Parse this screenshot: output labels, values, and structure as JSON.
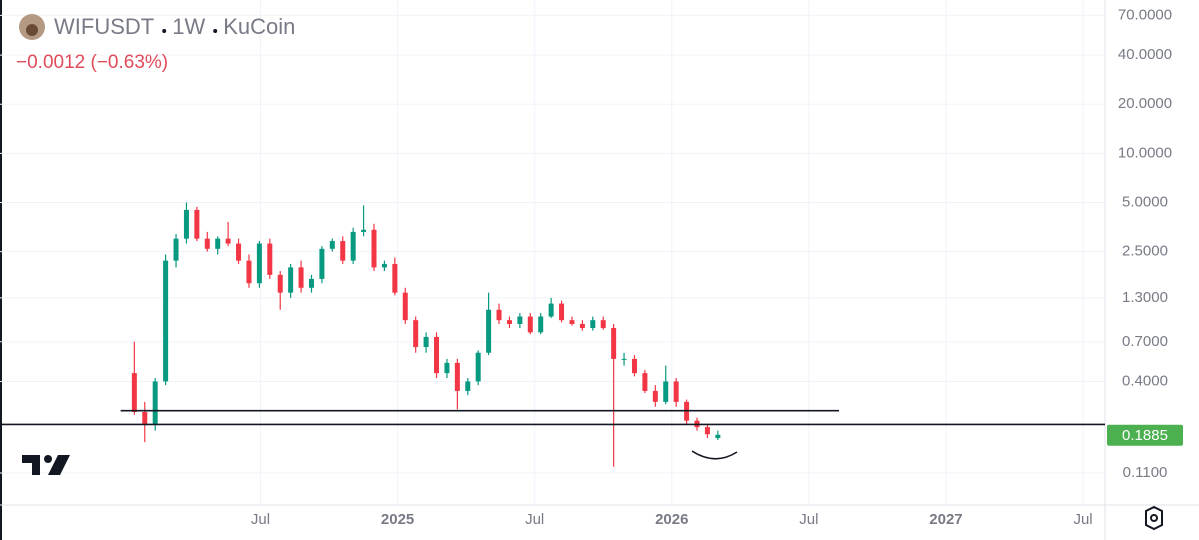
{
  "chart_data": {
    "type": "candlestick",
    "symbol": "WIFUSDT",
    "interval": "1W",
    "exchange": "KuCoin",
    "change": "−0.0012 (−0.63%)",
    "last_price": 0.1885,
    "last_price_label": "0.1885",
    "log_scale": true,
    "grid": true,
    "up_color": "#089981",
    "down_color": "#f23645",
    "xlim": [
      2023.55,
      2027.58
    ],
    "xticks": [
      {
        "value": 2024.5,
        "label": "Jul"
      },
      2025,
      {
        "value": 2025.5,
        "label": "Jul"
      },
      2026,
      {
        "value": 2026.5,
        "label": "Jul"
      },
      2027,
      {
        "value": 2027.5,
        "label": "Jul"
      }
    ],
    "ylim": [
      0.07,
      87
    ],
    "yticks": [
      {
        "value": 70,
        "label": "70.0000"
      },
      {
        "value": 40,
        "label": "40.0000"
      },
      {
        "value": 20,
        "label": "20.0000"
      },
      {
        "value": 10,
        "label": "10.0000"
      },
      {
        "value": 5,
        "label": "5.0000"
      },
      {
        "value": 2.5,
        "label": "2.5000"
      },
      {
        "value": 1.3,
        "label": "1.3000"
      },
      {
        "value": 0.7,
        "label": "0.7000"
      },
      {
        "value": 0.4,
        "label": "0.4000"
      },
      {
        "value": 0.11,
        "label": "0.1100"
      }
    ],
    "lines": [
      {
        "value": 0.265,
        "x": [
          2023.99,
          2026.61
        ]
      },
      {
        "value": 0.218,
        "x": [
          2023.55,
          2027.58
        ]
      }
    ],
    "x": [
      2024.04,
      2024.078,
      2024.116,
      2024.154,
      2024.192,
      2024.23,
      2024.268,
      2024.306,
      2024.344,
      2024.382,
      2024.42,
      2024.458,
      2024.496,
      2024.534,
      2024.572,
      2024.61,
      2024.648,
      2024.686,
      2024.724,
      2024.762,
      2024.8,
      2024.838,
      2024.876,
      2024.914,
      2024.952,
      2024.99,
      2025.028,
      2025.066,
      2025.104,
      2025.142,
      2025.18,
      2025.218,
      2025.256,
      2025.294,
      2025.332,
      2025.37,
      2025.408,
      2025.446,
      2025.484,
      2025.522,
      2025.56,
      2025.598,
      2025.636,
      2025.674,
      2025.712,
      2025.75,
      2025.788,
      2025.826,
      2025.864,
      2025.902,
      2025.94,
      2025.978,
      2026.016,
      2026.054,
      2026.092,
      2026.13,
      2026.168
    ],
    "open": [
      0.45,
      0.26,
      0.22,
      0.4,
      2.2,
      3.0,
      4.5,
      3.0,
      2.6,
      3.0,
      2.8,
      2.2,
      1.6,
      2.8,
      1.8,
      1.4,
      2.0,
      1.5,
      1.7,
      2.6,
      2.9,
      2.2,
      3.3,
      3.4,
      2.0,
      2.1,
      1.4,
      0.95,
      0.65,
      0.75,
      0.45,
      0.52,
      0.35,
      0.4,
      0.6,
      1.1,
      0.95,
      0.9,
      1.0,
      0.8,
      1.0,
      1.2,
      0.95,
      0.9,
      0.85,
      0.95,
      0.85,
      0.55,
      0.55,
      0.45,
      0.35,
      0.3,
      0.4,
      0.3,
      0.23,
      0.21,
      0.18
    ],
    "high": [
      0.7,
      0.3,
      0.42,
      2.4,
      3.2,
      5.0,
      4.7,
      3.3,
      3.1,
      3.8,
      3.0,
      2.4,
      2.9,
      3.0,
      1.9,
      2.1,
      2.2,
      1.8,
      2.7,
      3.0,
      3.1,
      3.5,
      4.8,
      3.7,
      2.2,
      2.3,
      1.5,
      1.0,
      0.8,
      0.8,
      0.55,
      0.55,
      0.42,
      0.62,
      1.4,
      1.2,
      1.0,
      1.05,
      1.05,
      1.05,
      1.3,
      1.25,
      1.0,
      0.95,
      1.0,
      1.0,
      0.9,
      0.6,
      0.58,
      0.47,
      0.38,
      0.5,
      0.42,
      0.31,
      0.24,
      0.22,
      0.2
    ],
    "low": [
      0.25,
      0.17,
      0.2,
      0.38,
      2.0,
      2.8,
      2.9,
      2.5,
      2.4,
      2.7,
      2.1,
      1.5,
      1.5,
      1.7,
      1.1,
      1.3,
      1.4,
      1.4,
      1.6,
      2.5,
      2.1,
      2.1,
      3.1,
      1.9,
      1.9,
      1.35,
      0.9,
      0.6,
      0.6,
      0.42,
      0.42,
      0.27,
      0.33,
      0.38,
      0.58,
      0.9,
      0.85,
      0.85,
      0.78,
      0.78,
      0.98,
      0.92,
      0.88,
      0.82,
      0.82,
      0.83,
      0.12,
      0.5,
      0.43,
      0.34,
      0.28,
      0.29,
      0.28,
      0.22,
      0.2,
      0.18,
      0.175
    ],
    "close": [
      0.26,
      0.22,
      0.4,
      2.2,
      3.0,
      4.5,
      3.0,
      2.6,
      3.0,
      2.8,
      2.2,
      1.6,
      2.8,
      1.8,
      1.4,
      2.0,
      1.5,
      1.7,
      2.6,
      2.9,
      2.2,
      3.3,
      3.4,
      2.0,
      2.1,
      1.4,
      0.95,
      0.65,
      0.75,
      0.45,
      0.52,
      0.35,
      0.4,
      0.6,
      1.1,
      0.95,
      0.9,
      1.0,
      0.8,
      1.0,
      1.2,
      0.95,
      0.9,
      0.85,
      0.95,
      0.85,
      0.55,
      0.55,
      0.45,
      0.35,
      0.3,
      0.4,
      0.3,
      0.23,
      0.21,
      0.19,
      0.1885
    ]
  }
}
